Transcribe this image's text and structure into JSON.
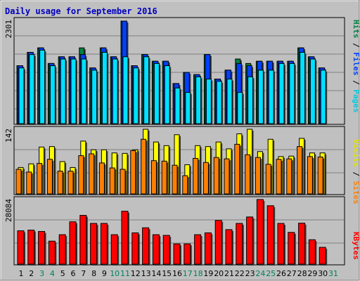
{
  "colors": {
    "background": "#c0c0c0",
    "title": "#0000c0",
    "hits": "#008040",
    "files": "#0040ff",
    "pages": "#00e0ff",
    "visits": "#ffff00",
    "sites": "#ff8000",
    "kbytes": "#ff0000",
    "day_normal": "#000000",
    "day_weekend": "#00805c"
  },
  "chart_data": [
    {
      "type": "bar",
      "title": "Daily usage for September 2016",
      "panel": "hits-files-pages",
      "ylabel": "Pages / Files / Hits",
      "ymax_label": "2301",
      "ylim": [
        0,
        2301
      ],
      "categories": [
        "1",
        "2",
        "3",
        "4",
        "5",
        "6",
        "7",
        "8",
        "9",
        "10",
        "11",
        "12",
        "13",
        "14",
        "15",
        "16",
        "17",
        "18",
        "19",
        "20",
        "21",
        "22",
        "23",
        "24",
        "25",
        "26",
        "27",
        "28",
        "29",
        "30",
        "31"
      ],
      "series": [
        {
          "name": "Hits",
          "values": [
            1300,
            1600,
            1700,
            1350,
            1500,
            1500,
            1700,
            1250,
            1700,
            1500,
            2301,
            1300,
            1550,
            1400,
            1400,
            900,
            1150,
            1100,
            1550,
            1000,
            1200,
            1450,
            1350,
            1400,
            1400,
            1400,
            1400,
            1700,
            1500,
            1250,
            0
          ]
        },
        {
          "name": "Files",
          "values": [
            1300,
            1600,
            1700,
            1350,
            1500,
            1500,
            1550,
            1250,
            1700,
            1500,
            2301,
            1300,
            1550,
            1400,
            1400,
            900,
            1150,
            1100,
            1550,
            1000,
            1200,
            1350,
            1300,
            1400,
            1400,
            1400,
            1400,
            1700,
            1500,
            1250,
            0
          ]
        },
        {
          "name": "Pages",
          "values": [
            1250,
            1550,
            1650,
            1300,
            1450,
            1450,
            1450,
            1200,
            1600,
            1450,
            1500,
            1250,
            1500,
            1350,
            1300,
            800,
            700,
            1050,
            1000,
            950,
            1000,
            700,
            1050,
            1200,
            1200,
            1350,
            1350,
            1600,
            1450,
            1200,
            0
          ]
        }
      ]
    },
    {
      "type": "bar",
      "panel": "visits-sites",
      "ylabel": "Sites / Visits",
      "ymax_label": "142",
      "ylim": [
        0,
        142
      ],
      "categories": [
        "1",
        "2",
        "3",
        "4",
        "5",
        "6",
        "7",
        "8",
        "9",
        "10",
        "11",
        "12",
        "13",
        "14",
        "15",
        "16",
        "17",
        "18",
        "19",
        "20",
        "21",
        "22",
        "23",
        "24",
        "25",
        "26",
        "27",
        "28",
        "29",
        "30",
        "31"
      ],
      "series": [
        {
          "name": "Visits",
          "values": [
            58,
            66,
            103,
            104,
            71,
            58,
            116,
            97,
            97,
            90,
            89,
            97,
            142,
            114,
            106,
            130,
            64,
            106,
            104,
            114,
            99,
            132,
            142,
            93,
            120,
            82,
            83,
            122,
            90,
            90,
            0
          ]
        },
        {
          "name": "Sites",
          "values": [
            54,
            48,
            67,
            76,
            50,
            50,
            84,
            88,
            68,
            57,
            54,
            95,
            120,
            73,
            72,
            63,
            40,
            78,
            69,
            80,
            77,
            109,
            86,
            80,
            65,
            76,
            77,
            104,
            82,
            81,
            0
          ]
        }
      ]
    },
    {
      "type": "bar",
      "panel": "kbytes",
      "ylabel": "KBytes",
      "ymax_label": "28084",
      "ylim": [
        0,
        28084
      ],
      "categories": [
        "1",
        "2",
        "3",
        "4",
        "5",
        "6",
        "7",
        "8",
        "9",
        "10",
        "11",
        "12",
        "13",
        "14",
        "15",
        "16",
        "17",
        "18",
        "19",
        "20",
        "21",
        "22",
        "23",
        "24",
        "25",
        "26",
        "27",
        "28",
        "29",
        "30",
        "31"
      ],
      "series": [
        {
          "name": "KBytes",
          "values": [
            14500,
            14800,
            14200,
            10000,
            12800,
            18400,
            21200,
            17700,
            17700,
            12800,
            23000,
            13600,
            15800,
            12800,
            12500,
            8800,
            8800,
            12800,
            13600,
            19000,
            15000,
            17700,
            20500,
            28084,
            25400,
            17700,
            13800,
            17800,
            10600,
            7300,
            0
          ]
        }
      ]
    }
  ],
  "day_labels": [
    {
      "text": "1",
      "weekend": false
    },
    {
      "text": "2",
      "weekend": false
    },
    {
      "text": "3",
      "weekend": true
    },
    {
      "text": "4",
      "weekend": true
    },
    {
      "text": "5",
      "weekend": false
    },
    {
      "text": "6",
      "weekend": false
    },
    {
      "text": "7",
      "weekend": false
    },
    {
      "text": "8",
      "weekend": false
    },
    {
      "text": "9",
      "weekend": false
    },
    {
      "text": "10",
      "weekend": true
    },
    {
      "text": "11",
      "weekend": true
    },
    {
      "text": "12",
      "weekend": false
    },
    {
      "text": "13",
      "weekend": false
    },
    {
      "text": "14",
      "weekend": false
    },
    {
      "text": "15",
      "weekend": false
    },
    {
      "text": "16",
      "weekend": false
    },
    {
      "text": "17",
      "weekend": true
    },
    {
      "text": "18",
      "weekend": true
    },
    {
      "text": "19",
      "weekend": false
    },
    {
      "text": "20",
      "weekend": false
    },
    {
      "text": "21",
      "weekend": false
    },
    {
      "text": "22",
      "weekend": false
    },
    {
      "text": "23",
      "weekend": false
    },
    {
      "text": "24",
      "weekend": true
    },
    {
      "text": "25",
      "weekend": true
    },
    {
      "text": "26",
      "weekend": false
    },
    {
      "text": "27",
      "weekend": false
    },
    {
      "text": "28",
      "weekend": false
    },
    {
      "text": "29",
      "weekend": false
    },
    {
      "text": "30",
      "weekend": false
    },
    {
      "text": "31",
      "weekend": true
    }
  ],
  "legend_top": {
    "pages": "Pages",
    "sep1": " / ",
    "files": "Files",
    "sep2": " / ",
    "hits": "Hits"
  },
  "legend_mid": {
    "sites": "Sites",
    "sep1": " / ",
    "visits": "Visits"
  },
  "legend_bot": {
    "kbytes": "KBytes"
  }
}
